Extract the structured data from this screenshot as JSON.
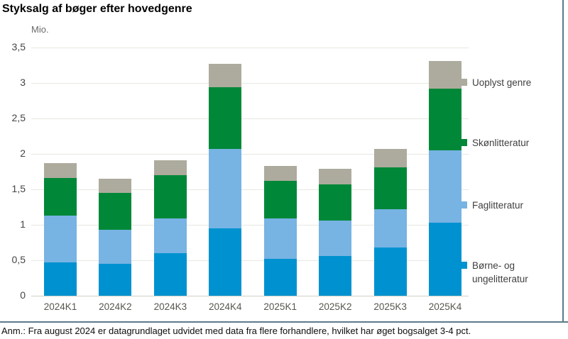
{
  "page": {
    "title": "Styksalg af bøger efter hovedgenre",
    "footnote": "Anm.: Fra august 2024 er datagrundlaget udvidet med data fra flere forhandlere, hvilket har øget bogsalget 3-4 pct."
  },
  "chart_data": {
    "type": "bar",
    "stacked": true,
    "title": "Styksalg af bøger efter hovedgenre",
    "unit_label": "Mio.",
    "xlabel": "",
    "ylabel": "Mio.",
    "ylim": [
      0,
      3.5
    ],
    "grid": true,
    "legend_position": "right",
    "categories": [
      "2024K1",
      "2024K2",
      "2024K3",
      "2024K4",
      "2025K1",
      "2025K2",
      "2025K3",
      "2025K4"
    ],
    "series": [
      {
        "name": "Børne- og ungelitteratur",
        "color": "#0092d0",
        "values": [
          0.47,
          0.45,
          0.6,
          0.95,
          0.52,
          0.56,
          0.68,
          1.03
        ]
      },
      {
        "name": "Faglitteratur",
        "color": "#77b3e3",
        "values": [
          0.66,
          0.48,
          0.49,
          1.12,
          0.57,
          0.5,
          0.54,
          1.02
        ]
      },
      {
        "name": "Skønlitteratur",
        "color": "#008838",
        "values": [
          0.53,
          0.52,
          0.61,
          0.87,
          0.53,
          0.51,
          0.59,
          0.87
        ]
      },
      {
        "name": "Uoplyst genre",
        "color": "#adab9d",
        "values": [
          0.21,
          0.2,
          0.21,
          0.33,
          0.21,
          0.22,
          0.26,
          0.39
        ]
      }
    ],
    "totals": [
      1.87,
      1.65,
      1.91,
      3.27,
      1.83,
      1.79,
      2.07,
      3.31
    ],
    "y_ticks": [
      {
        "label": "3,5",
        "value": 3.5
      },
      {
        "label": "3",
        "value": 3.0
      },
      {
        "label": "2,5",
        "value": 2.5
      },
      {
        "label": "2",
        "value": 2.0
      },
      {
        "label": "1,5",
        "value": 1.5
      },
      {
        "label": "1",
        "value": 1.0
      },
      {
        "label": "0,5",
        "value": 0.5
      },
      {
        "label": "0",
        "value": 0.0
      }
    ],
    "legend_order_top_to_bottom": [
      "Uoplyst genre",
      "Skønlitteratur",
      "Faglitteratur",
      "Børne- og ungelitteratur"
    ]
  }
}
